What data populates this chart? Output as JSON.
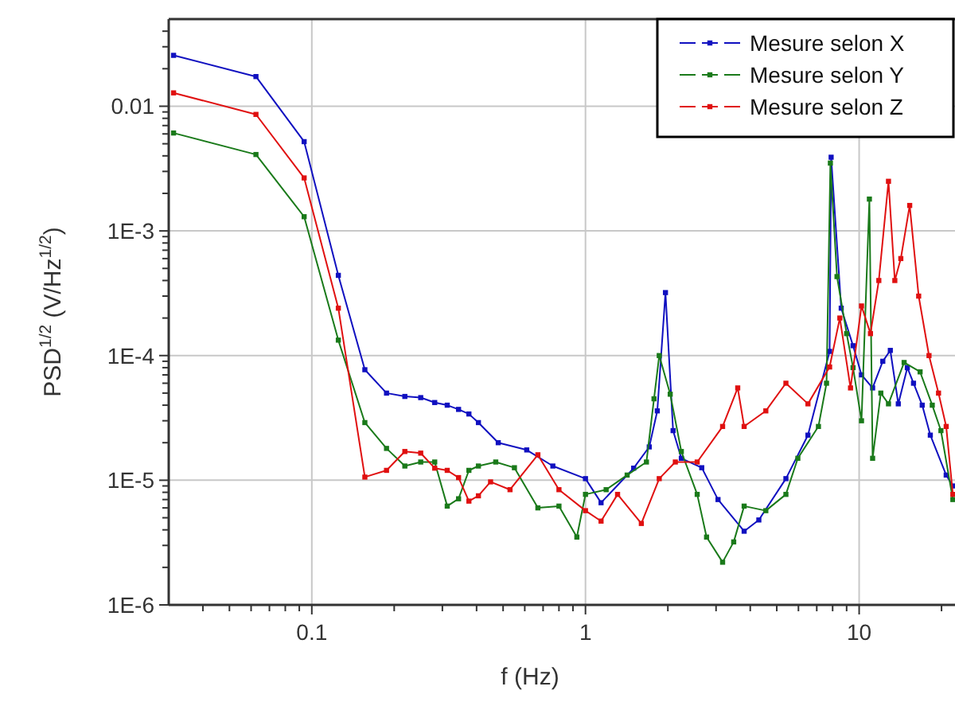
{
  "chart_data": {
    "type": "line",
    "xlabel": "f (Hz)",
    "ylabel": "PSD$^{1/2}$ (V/Hz$^{1/2}$)",
    "log": "xy",
    "grid": true,
    "legend": "top right",
    "marker": "square",
    "line_style": "solid",
    "xlim": [
      0.03,
      22.4
    ],
    "ylim": [
      1e-06,
      0.05
    ],
    "xticks": [
      {
        "value": 0.04,
        "label": null
      },
      {
        "value": 0.05,
        "label": null
      },
      {
        "value": 0.06,
        "label": null
      },
      {
        "value": 0.07,
        "label": null
      },
      {
        "value": 0.08,
        "label": null
      },
      {
        "value": 0.09,
        "label": null
      },
      0.1,
      {
        "value": 0.2,
        "label": null
      },
      {
        "value": 0.3,
        "label": null
      },
      {
        "value": 0.4,
        "label": null
      },
      {
        "value": 0.5,
        "label": null
      },
      {
        "value": 0.6,
        "label": null
      },
      {
        "value": 0.7,
        "label": null
      },
      {
        "value": 0.8,
        "label": null
      },
      {
        "value": 0.9,
        "label": null
      },
      1,
      {
        "value": 2,
        "label": null
      },
      {
        "value": 3,
        "label": null
      },
      {
        "value": 4,
        "label": null
      },
      {
        "value": 5,
        "label": null
      },
      {
        "value": 6,
        "label": null
      },
      {
        "value": 7,
        "label": null
      },
      {
        "value": 8,
        "label": null
      },
      {
        "value": 9,
        "label": null
      },
      10,
      {
        "value": 20,
        "label": null
      }
    ],
    "yticks": [
      {
        "value": 1e-06,
        "label": "1E-6"
      },
      {
        "value": 2e-06,
        "label": null
      },
      {
        "value": 3e-06,
        "label": null
      },
      {
        "value": 4e-06,
        "label": null
      },
      {
        "value": 5e-06,
        "label": null
      },
      {
        "value": 6e-06,
        "label": null
      },
      {
        "value": 7e-06,
        "label": null
      },
      {
        "value": 8e-06,
        "label": null
      },
      {
        "value": 9e-06,
        "label": null
      },
      {
        "value": 1e-05,
        "label": "1E-5"
      },
      {
        "value": 2e-05,
        "label": null
      },
      {
        "value": 3e-05,
        "label": null
      },
      {
        "value": 4e-05,
        "label": null
      },
      {
        "value": 5e-05,
        "label": null
      },
      {
        "value": 6e-05,
        "label": null
      },
      {
        "value": 7e-05,
        "label": null
      },
      {
        "value": 8e-05,
        "label": null
      },
      {
        "value": 9e-05,
        "label": null
      },
      {
        "value": 0.0001,
        "label": "1E-4"
      },
      {
        "value": 0.0002,
        "label": null
      },
      {
        "value": 0.0003,
        "label": null
      },
      {
        "value": 0.0004,
        "label": null
      },
      {
        "value": 0.0005,
        "label": null
      },
      {
        "value": 0.0006,
        "label": null
      },
      {
        "value": 0.0007,
        "label": null
      },
      {
        "value": 0.0008,
        "label": null
      },
      {
        "value": 0.0009,
        "label": null
      },
      {
        "value": 0.001,
        "label": "1E-3"
      },
      {
        "value": 0.002,
        "label": null
      },
      {
        "value": 0.003,
        "label": null
      },
      {
        "value": 0.004,
        "label": null
      },
      {
        "value": 0.005,
        "label": null
      },
      {
        "value": 0.006,
        "label": null
      },
      {
        "value": 0.007,
        "label": null
      },
      {
        "value": 0.008,
        "label": null
      },
      {
        "value": 0.009,
        "label": null
      },
      0.01,
      {
        "value": 0.02,
        "label": null
      },
      {
        "value": 0.03,
        "label": null
      },
      {
        "value": 0.04,
        "label": null
      }
    ],
    "series": [
      {
        "name": "Mesure selon X",
        "color": "#1010c0",
        "x": [
          0.03125,
          0.0625,
          0.09375,
          0.125,
          0.15625,
          0.1875,
          0.21875,
          0.25,
          0.28125,
          0.3125,
          0.34375,
          0.375,
          0.40625,
          0.48,
          0.61,
          0.76,
          1,
          1.14,
          1.5,
          1.71,
          1.83,
          1.96,
          2.09,
          2.24,
          2.66,
          3.05,
          3.8,
          4.3,
          5.4,
          6.5,
          7.8,
          7.9,
          8.6,
          9.5,
          10.2,
          11.2,
          12.2,
          13,
          13.9,
          15,
          15.8,
          17,
          18.2,
          20.8,
          22
        ],
        "values": [
          0.0256,
          0.0173,
          0.0052,
          0.00044,
          7.7e-05,
          5e-05,
          4.7e-05,
          4.6e-05,
          4.2e-05,
          4e-05,
          3.7e-05,
          3.4e-05,
          2.9e-05,
          2e-05,
          1.75e-05,
          1.3e-05,
          1.03e-05,
          6.6e-06,
          1.25e-05,
          1.85e-05,
          3.6e-05,
          0.00032,
          2.5e-05,
          1.5e-05,
          1.26e-05,
          7e-06,
          3.9e-06,
          4.8e-06,
          1.03e-05,
          2.3e-05,
          0.000108,
          0.0039,
          0.00024,
          0.00012,
          7e-05,
          5.5e-05,
          9e-05,
          0.00011,
          4.1e-05,
          8e-05,
          6e-05,
          4e-05,
          2.3e-05,
          1.1e-05,
          9e-06
        ]
      },
      {
        "name": "Mesure selon Y",
        "color": "#1a7a1a",
        "x": [
          0.03125,
          0.0625,
          0.09375,
          0.125,
          0.15625,
          0.1875,
          0.21875,
          0.25,
          0.28125,
          0.3125,
          0.34375,
          0.375,
          0.40625,
          0.47,
          0.55,
          0.67,
          0.8,
          0.93,
          1,
          1.19,
          1.42,
          1.67,
          1.78,
          1.86,
          2.04,
          2.24,
          2.56,
          2.77,
          3.17,
          3.48,
          3.8,
          4.56,
          5.4,
          5.97,
          7.1,
          7.6,
          7.85,
          8.3,
          9,
          9.5,
          10.2,
          10.9,
          11.2,
          12,
          12.8,
          14.6,
          16.7,
          18.5,
          19.9,
          22
        ],
        "values": [
          0.0061,
          0.0041,
          0.0013,
          0.000133,
          2.9e-05,
          1.8e-05,
          1.3e-05,
          1.4e-05,
          1.4e-05,
          6.2e-06,
          7.1e-06,
          1.2e-05,
          1.3e-05,
          1.4e-05,
          1.26e-05,
          6e-06,
          6.2e-06,
          3.5e-06,
          7.7e-06,
          8.4e-06,
          1.1e-05,
          1.4e-05,
          4.5e-05,
          0.0001,
          4.9e-05,
          1.7e-05,
          7.7e-06,
          3.5e-06,
          2.2e-06,
          3.2e-06,
          6.2e-06,
          5.7e-06,
          7.7e-06,
          1.5e-05,
          2.7e-05,
          6e-05,
          0.0035,
          0.00043,
          0.00015,
          8e-05,
          3e-05,
          0.0018,
          1.5e-05,
          5e-05,
          4.1e-05,
          8.8e-05,
          7.4e-05,
          4e-05,
          2.5e-05,
          7e-06
        ]
      },
      {
        "name": "Mesure selon Z",
        "color": "#e01010",
        "x": [
          0.03125,
          0.0625,
          0.09375,
          0.125,
          0.15625,
          0.1875,
          0.21875,
          0.25,
          0.28125,
          0.3125,
          0.34375,
          0.375,
          0.40625,
          0.45,
          0.53,
          0.67,
          0.8,
          1,
          1.14,
          1.31,
          1.6,
          1.86,
          2.13,
          2.56,
          3.17,
          3.6,
          3.8,
          4.56,
          5.4,
          6.5,
          7.8,
          8.5,
          9.3,
          10.2,
          11,
          11.8,
          12.8,
          13.5,
          14.2,
          15.3,
          16.5,
          18,
          19.5,
          20.8,
          22
        ],
        "values": [
          0.0128,
          0.0086,
          0.00266,
          0.00024,
          1.06e-05,
          1.2e-05,
          1.7e-05,
          1.65e-05,
          1.25e-05,
          1.2e-05,
          1.05e-05,
          6.8e-06,
          7.5e-06,
          9.7e-06,
          8.4e-06,
          1.6e-05,
          8.4e-06,
          5.7e-06,
          4.7e-06,
          7.7e-06,
          4.5e-06,
          1.03e-05,
          1.4e-05,
          1.4e-05,
          2.7e-05,
          5.5e-05,
          2.7e-05,
          3.6e-05,
          6e-05,
          4.1e-05,
          8.1e-05,
          0.0002,
          5.5e-05,
          0.00025,
          0.00015,
          0.0004,
          0.0025,
          0.0004,
          0.0006,
          0.0016,
          0.0003,
          0.0001,
          5e-05,
          2.7e-05,
          7.7e-06
        ]
      }
    ]
  }
}
